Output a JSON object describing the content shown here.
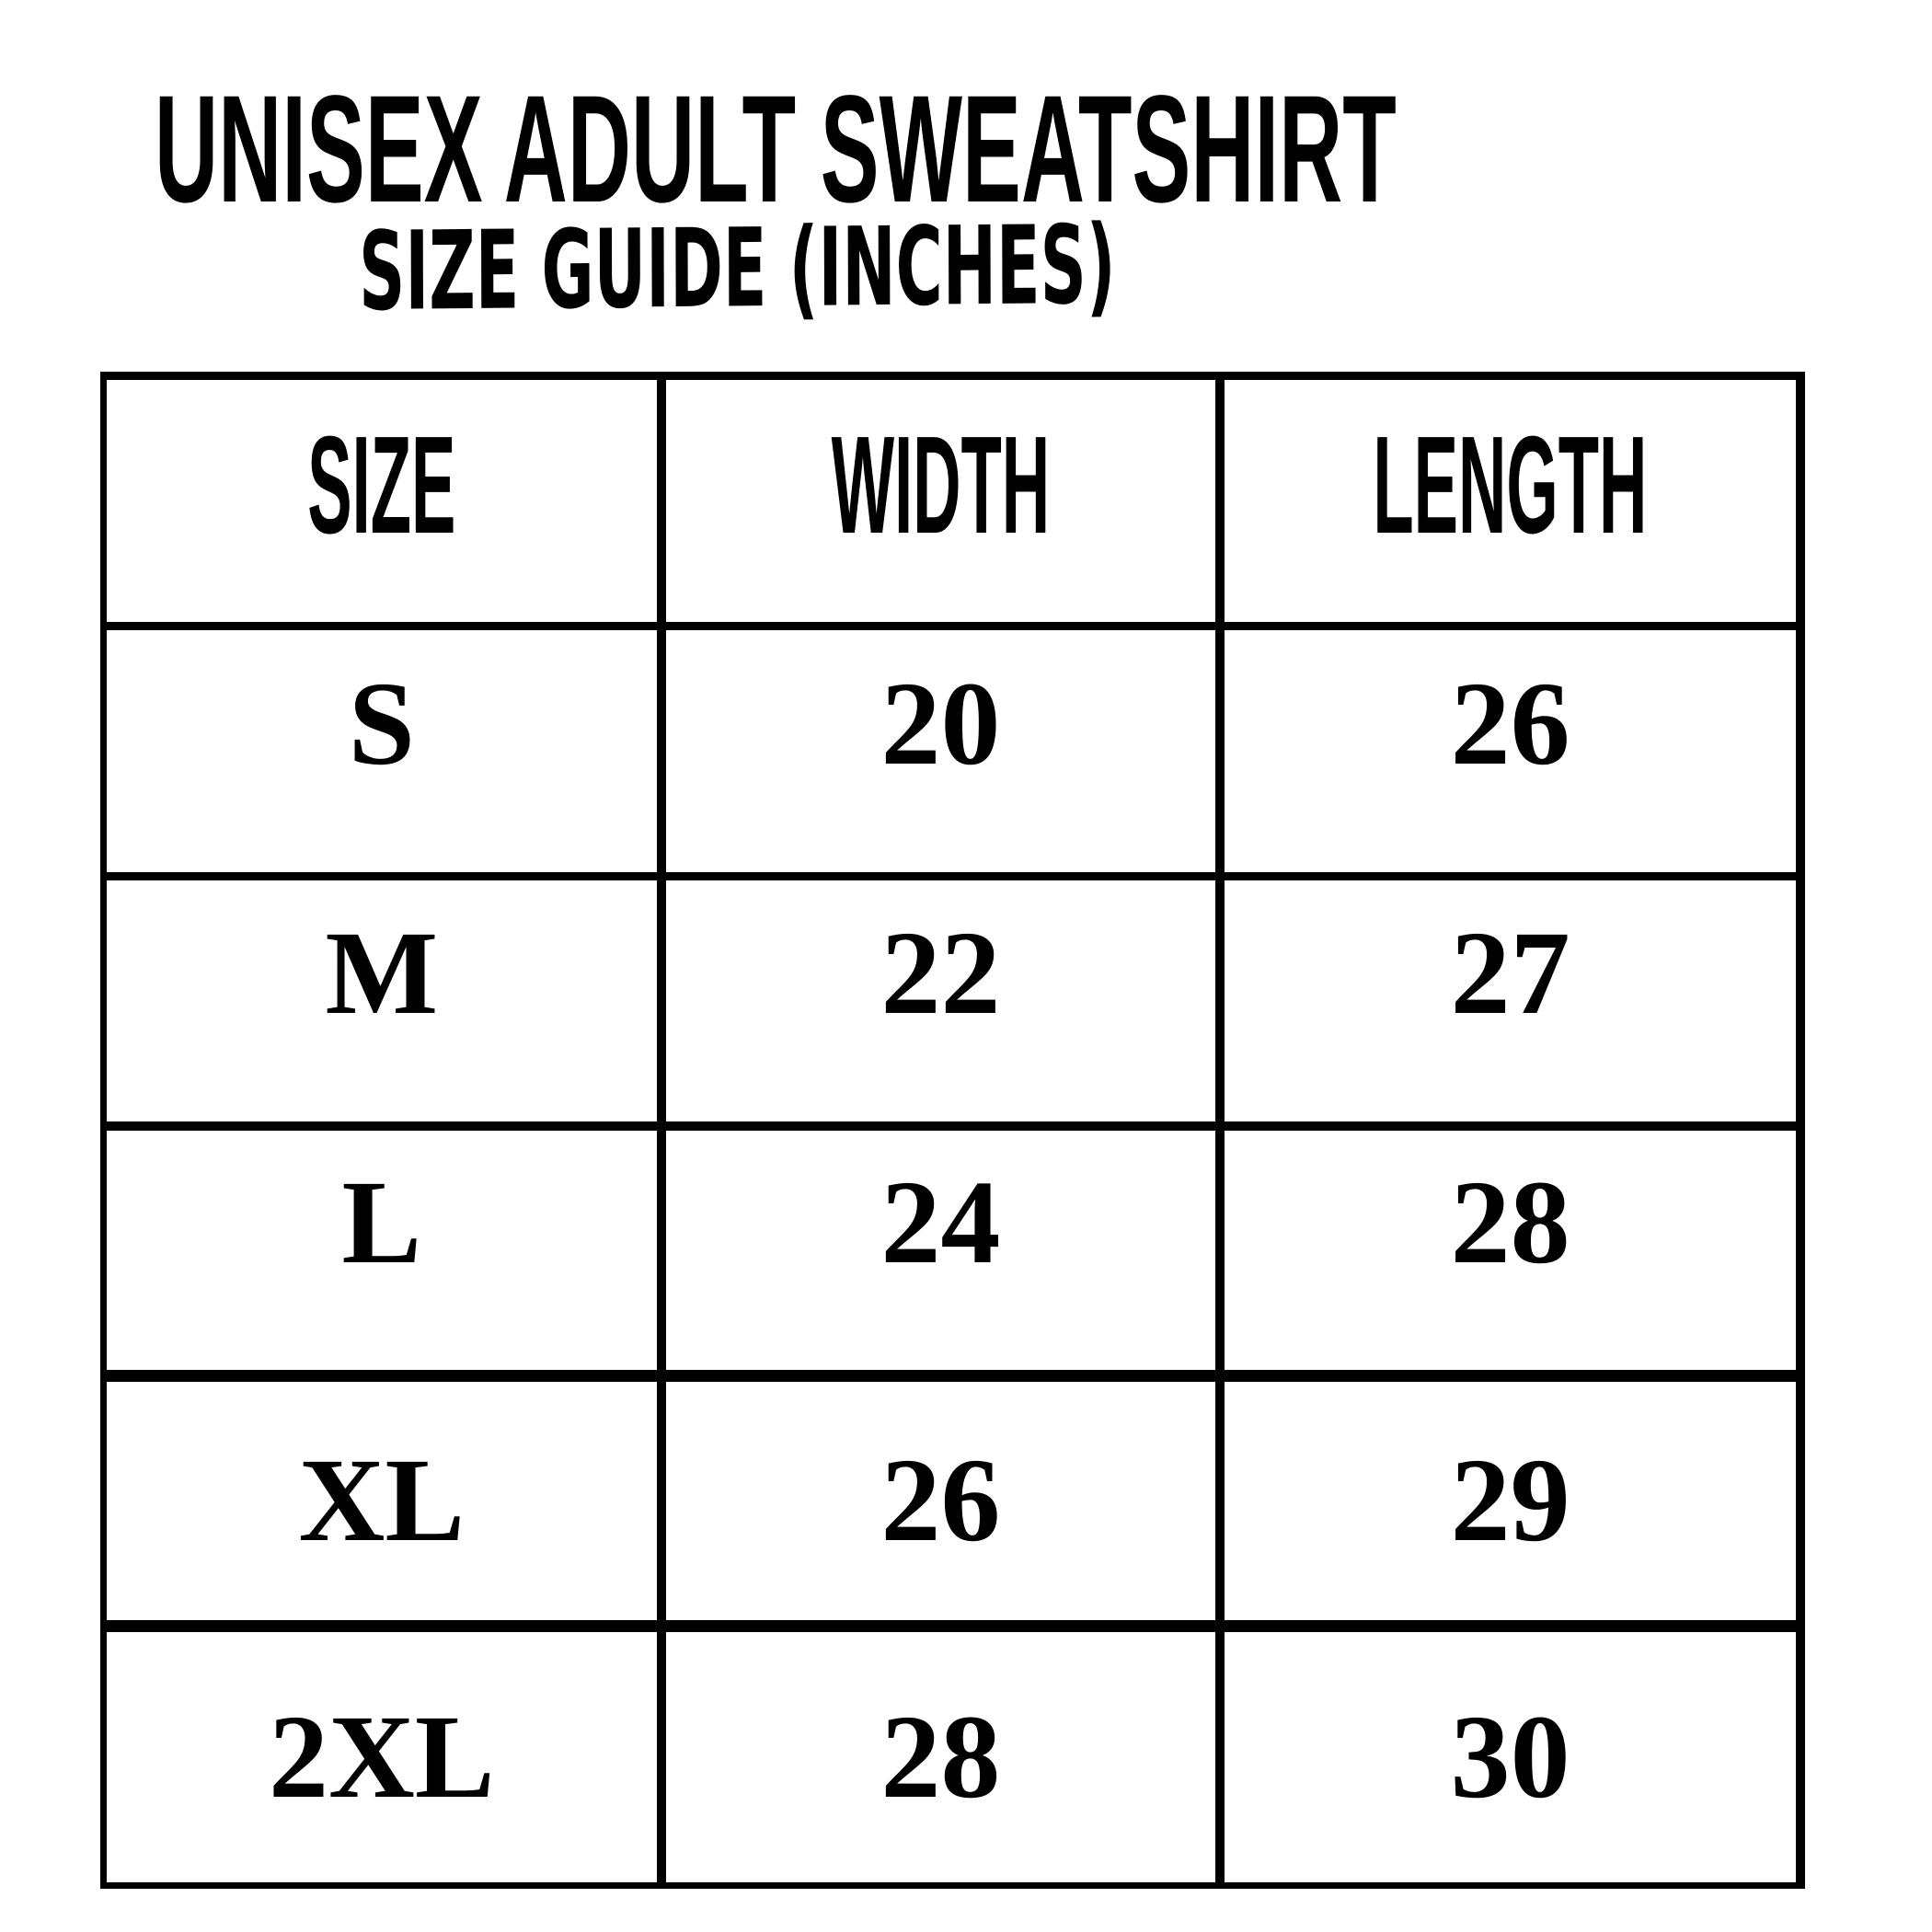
{
  "page": {
    "title": "UNISEX ADULT SWEATSHIRT",
    "subtitle": "SIZE GUIDE (INCHES)"
  },
  "colors": {
    "background": "#ffffff",
    "text": "#000000",
    "border": "#000000"
  },
  "table": {
    "headers": [
      "SIZE",
      "WIDTH",
      "LENGTH"
    ],
    "rows": [
      [
        "S",
        "20",
        "26"
      ],
      [
        "M",
        "22",
        "27"
      ],
      [
        "L",
        "24",
        "28"
      ],
      [
        "XL",
        "26",
        "29"
      ],
      [
        "2XL",
        "28",
        "30"
      ]
    ]
  },
  "chart_data": {
    "type": "table",
    "title": "UNISEX ADULT SWEATSHIRT",
    "subtitle": "SIZE GUIDE (INCHES)",
    "units": "inches",
    "columns": [
      "SIZE",
      "WIDTH",
      "LENGTH"
    ],
    "rows": [
      {
        "size": "S",
        "width": 20,
        "length": 26
      },
      {
        "size": "M",
        "width": 22,
        "length": 27
      },
      {
        "size": "L",
        "width": 24,
        "length": 28
      },
      {
        "size": "XL",
        "width": 26,
        "length": 29
      },
      {
        "size": "2XL",
        "width": 28,
        "length": 30
      }
    ]
  }
}
